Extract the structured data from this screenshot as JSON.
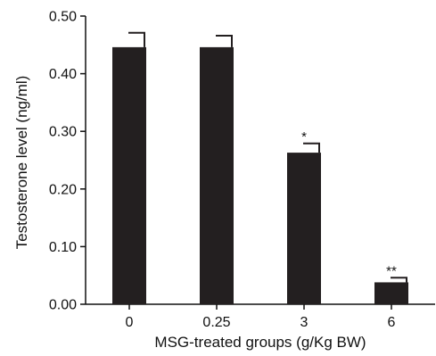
{
  "chart_data": {
    "type": "bar",
    "categories": [
      "0",
      "0.25",
      "3",
      "6"
    ],
    "values": [
      0.446,
      0.446,
      0.263,
      0.038
    ],
    "errors": [
      0.025,
      0.02,
      0.016,
      0.008
    ],
    "significance": [
      "",
      "",
      "*",
      "**"
    ],
    "xlabel": "MSG-treated groups (g/Kg BW)",
    "ylabel": "Testosterone level (ng/ml)",
    "ylim": [
      0,
      0.5
    ],
    "yticks": [
      "0.00",
      "0.10",
      "0.20",
      "0.30",
      "0.40",
      "0.50"
    ],
    "grid": false,
    "bar_color": "#231f20"
  }
}
